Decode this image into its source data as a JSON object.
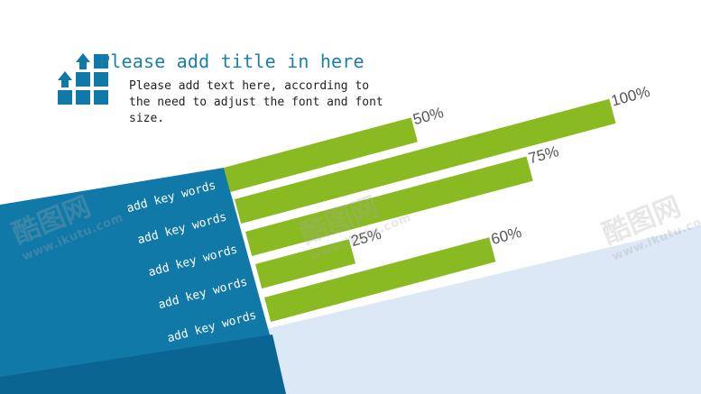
{
  "header": {
    "title": "Please add title in here",
    "body": "Please add text here, according to the need to adjust the font and font size.",
    "logo_icon": "growth-blocks-icon"
  },
  "watermark": {
    "brand": "酷图网",
    "url": "www.ikutu.com"
  },
  "colors": {
    "bar": "#8aba22",
    "band": "#1079a8",
    "band_dark": "#0b6592",
    "backdrop": "#dce8f5",
    "label": "#555555"
  },
  "chart_data": {
    "type": "bar",
    "orientation": "horizontal",
    "categories": [
      "add key words",
      "add key words",
      "add key words",
      "add key words",
      "add key words"
    ],
    "values": [
      50,
      100,
      75,
      25,
      60
    ],
    "value_labels": [
      "50%",
      "100%",
      "75%",
      "25%",
      "60%"
    ],
    "xlim": [
      0,
      100
    ]
  }
}
